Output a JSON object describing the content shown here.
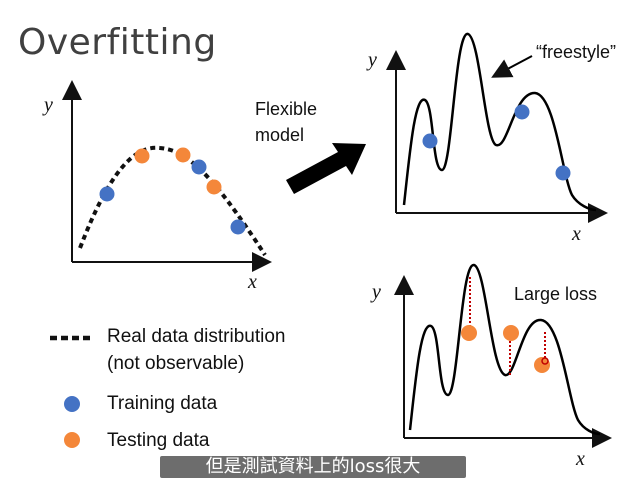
{
  "title": "Overfitting",
  "left_plot": {
    "y_label": "y",
    "x_label": "x"
  },
  "top_right_plot": {
    "y_label": "y",
    "x_label": "x",
    "annotation": "“freestyle”"
  },
  "bottom_right_plot": {
    "y_label": "y",
    "x_label": "x",
    "annotation": "Large loss"
  },
  "arrow_label": {
    "line1": "Flexible",
    "line2": "model"
  },
  "legend": {
    "real_line1": "Real data distribution",
    "real_line2": "(not observable)",
    "training": "Training data",
    "testing": "Testing data"
  },
  "colors": {
    "training": "#4472C4",
    "testing": "#F4873A",
    "loss_line": "#C00000"
  },
  "subtitle": "但是測試資料上的loss很大"
}
